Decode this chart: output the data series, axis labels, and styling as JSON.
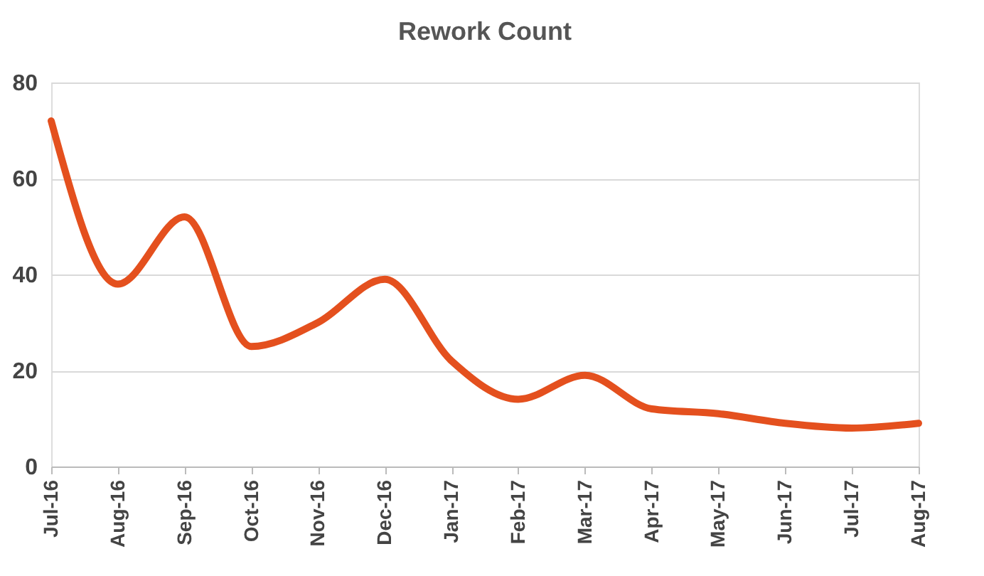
{
  "chart_data": {
    "type": "line",
    "title": "Rework Count",
    "categories": [
      "Jul-16",
      "Aug-16",
      "Sep-16",
      "Oct-16",
      "Nov-16",
      "Dec-16",
      "Jan-17",
      "Feb-17",
      "Mar-17",
      "Apr-17",
      "May-17",
      "Jun-17",
      "Jul-17",
      "Aug-17"
    ],
    "series": [
      {
        "color": "#e4501e",
        "values": [
          72,
          38,
          52,
          25,
          30,
          39,
          22,
          14,
          19,
          12,
          11,
          9,
          8,
          9
        ]
      }
    ],
    "ylim": [
      0,
      80
    ],
    "yticks": [
      0,
      20,
      40,
      60,
      80
    ],
    "grid": "y",
    "marker": "none",
    "line_style": "solid"
  }
}
